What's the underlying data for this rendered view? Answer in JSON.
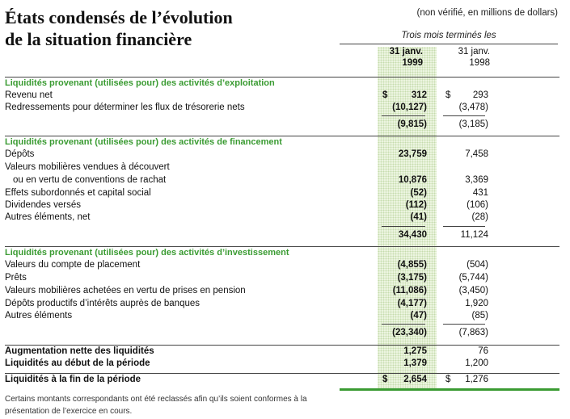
{
  "header": {
    "title_line1": "États condensés de l’évolution",
    "title_line2": "de la situation financière",
    "units": "(non vérifié, en millions de dollars)",
    "period": "Trois mois terminés les",
    "col1_line1": "31 janv.",
    "col1_line2": "1999",
    "col2_line1": "31 janv.",
    "col2_line2": "1998"
  },
  "rows": [
    {
      "label": "Liquidités provenant (utilisées pour) des activités d’exploitation",
      "type": "section"
    },
    {
      "label": "Revenu net",
      "v1": "312",
      "v2": "293",
      "cur": "$"
    },
    {
      "label": "Redressements pour déterminer les flux de trésorerie nets",
      "v1": "(10,127)",
      "v2": "(3,478)"
    },
    {
      "label": "",
      "v1": "(9,815)",
      "v2": "(3,185)",
      "type": "total"
    },
    {
      "label": "Liquidités provenant (utilisées pour) des activités de financement",
      "type": "section"
    },
    {
      "label": "Dépôts",
      "v1": "23,759",
      "v2": "7,458"
    },
    {
      "label": "Valeurs mobilières vendues à découvert"
    },
    {
      "label": "ou en vertu de conventions de rachat",
      "v1": "10,876",
      "v2": "3,369",
      "indent": true
    },
    {
      "label": "Effets subordonnés et capital social",
      "v1": "(52)",
      "v2": "431"
    },
    {
      "label": "Dividendes versés",
      "v1": "(112)",
      "v2": "(106)"
    },
    {
      "label": "Autres éléments, net",
      "v1": "(41)",
      "v2": "(28)"
    },
    {
      "label": "",
      "v1": "34,430",
      "v2": "11,124",
      "type": "total"
    },
    {
      "label": "Liquidités provenant (utilisées pour) des activités d’investissement",
      "type": "section"
    },
    {
      "label": "Valeurs du compte de placement",
      "v1": "(4,855)",
      "v2": "(504)"
    },
    {
      "label": "Prêts",
      "v1": "(3,175)",
      "v2": "(5,744)"
    },
    {
      "label": "Valeurs mobilières achetées en vertu de prises en pension",
      "v1": "(11,086)",
      "v2": "(3,450)"
    },
    {
      "label": "Dépôts productifs d’intérêts auprès de banques",
      "v1": "(4,177)",
      "v2": "1,920"
    },
    {
      "label": "Autres éléments",
      "v1": "(47)",
      "v2": "(85)"
    },
    {
      "label": "",
      "v1": "(23,340)",
      "v2": "(7,863)",
      "type": "total"
    },
    {
      "label": "Augmentation nette des liquidités",
      "v1": "1,275",
      "v2": "76",
      "type": "bold"
    },
    {
      "label": "Liquidités au début de la période",
      "v1": "1,379",
      "v2": "1,200",
      "type": "bold"
    },
    {
      "label": "Liquidités à la fin de la période",
      "v1": "2,654",
      "v2": "1,276",
      "type": "bold",
      "cur": "$"
    }
  ],
  "note": "Certains montants correspondants ont été reclassés afin qu’ils soient conformes à la présentation de l’exercice en cours."
}
